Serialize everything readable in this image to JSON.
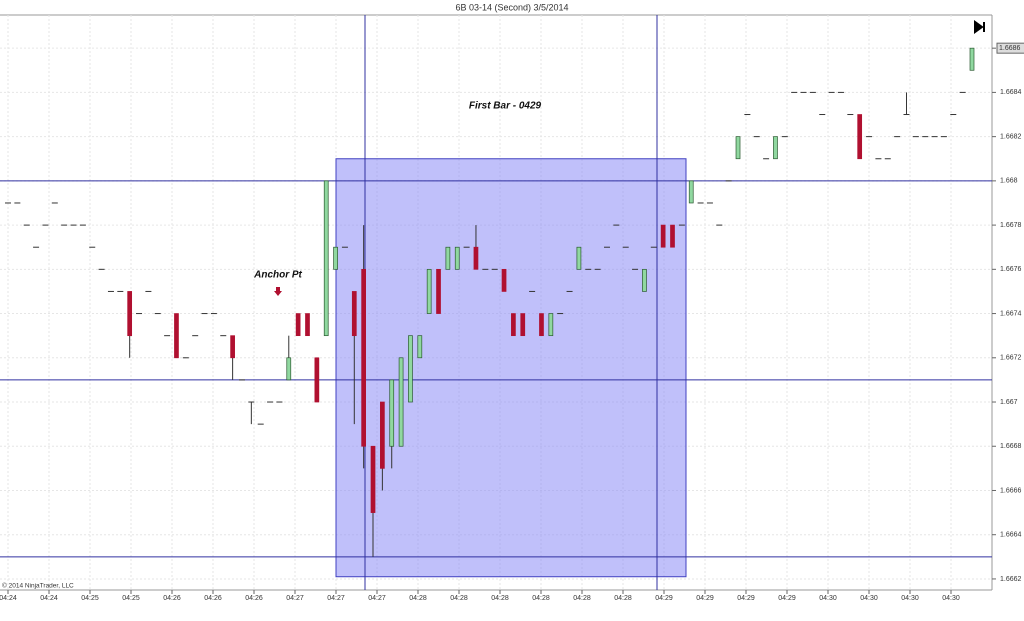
{
  "chart_data": {
    "type": "candlestick",
    "title": "6B 03-14 (Second)  3/5/2014",
    "copyright": "© 2014 NinjaTrader, LLC",
    "annotations": {
      "first_bar": "First Bar - 0429",
      "anchor": "Anchor Pt"
    },
    "up_color": "#90d8a0",
    "down_color": "#b01030",
    "ylim": [
      1.66615,
      1.66875
    ],
    "yticks": [
      1.6662,
      1.6664,
      1.6666,
      1.6668,
      1.667,
      1.6672,
      1.6674,
      1.6676,
      1.6678,
      1.668,
      1.6682,
      1.6684,
      1.6686
    ],
    "last_price": 1.6686,
    "levels": [
      1.668,
      1.6671,
      1.6663
    ],
    "box": {
      "top": 1.6681,
      "bottom": 1.66621,
      "color": "#8c8cf5"
    },
    "grid": true,
    "xtick_labels": [
      "04:24",
      "04:24",
      "04:25",
      "04:25",
      "04:26",
      "04:26",
      "04:26",
      "04:27",
      "04:27",
      "04:27",
      "04:28",
      "04:28",
      "04:28",
      "04:28",
      "04:28",
      "04:28",
      "04:29",
      "04:29",
      "04:29",
      "04:29",
      "04:30",
      "04:30",
      "04:30",
      "04:30"
    ],
    "ohlc": [
      [
        1.6679,
        1.6679,
        1.6679,
        1.6679
      ],
      [
        1.6679,
        1.6679,
        1.6679,
        1.6679
      ],
      [
        1.6678,
        1.6678,
        1.6678,
        1.6678
      ],
      [
        1.6677,
        1.6677,
        1.6677,
        1.6677
      ],
      [
        1.6678,
        1.6678,
        1.6678,
        1.6678
      ],
      [
        1.6679,
        1.6679,
        1.6679,
        1.6679
      ],
      [
        1.6678,
        1.6678,
        1.6678,
        1.6678
      ],
      [
        1.6678,
        1.6678,
        1.6678,
        1.6678
      ],
      [
        1.6678,
        1.6678,
        1.6678,
        1.6678
      ],
      [
        1.6677,
        1.6677,
        1.6677,
        1.6677
      ],
      [
        1.6676,
        1.6676,
        1.6676,
        1.6676
      ],
      [
        1.6675,
        1.6675,
        1.6675,
        1.6675
      ],
      [
        1.6675,
        1.6675,
        1.6675,
        1.6675
      ],
      [
        1.6675,
        1.6675,
        1.6672,
        1.6673
      ],
      [
        1.6674,
        1.6674,
        1.6674,
        1.6674
      ],
      [
        1.6675,
        1.6675,
        1.6675,
        1.6675
      ],
      [
        1.6674,
        1.6674,
        1.6674,
        1.6674
      ],
      [
        1.6673,
        1.6673,
        1.6673,
        1.6673
      ],
      [
        1.6674,
        1.6674,
        1.6672,
        1.6672
      ],
      [
        1.6672,
        1.6672,
        1.6672,
        1.6672
      ],
      [
        1.6673,
        1.6673,
        1.6673,
        1.6673
      ],
      [
        1.6674,
        1.6674,
        1.6674,
        1.6674
      ],
      [
        1.6674,
        1.6674,
        1.6674,
        1.6674
      ],
      [
        1.6673,
        1.6673,
        1.6673,
        1.6673
      ],
      [
        1.6673,
        1.6673,
        1.6671,
        1.6672
      ],
      [
        1.6671,
        1.6671,
        1.6671,
        1.6671
      ],
      [
        1.667,
        1.667,
        1.6669,
        1.667
      ],
      [
        1.6669,
        1.6669,
        1.6669,
        1.6669
      ],
      [
        1.667,
        1.667,
        1.667,
        1.667
      ],
      [
        1.667,
        1.667,
        1.667,
        1.667
      ],
      [
        1.6671,
        1.6673,
        1.6671,
        1.6672
      ],
      [
        1.6674,
        1.6674,
        1.6673,
        1.6673
      ],
      [
        1.6674,
        1.6674,
        1.6673,
        1.6673
      ],
      [
        1.6672,
        1.6672,
        1.667,
        1.667
      ],
      [
        1.6673,
        1.668,
        1.6673,
        1.668
      ],
      [
        1.6676,
        1.6677,
        1.6676,
        1.6677
      ],
      [
        1.6677,
        1.6677,
        1.6677,
        1.6677
      ],
      [
        1.6675,
        1.6675,
        1.6669,
        1.6673
      ],
      [
        1.6676,
        1.6678,
        1.6667,
        1.6668
      ],
      [
        1.6668,
        1.6668,
        1.6663,
        1.6665
      ],
      [
        1.667,
        1.667,
        1.6666,
        1.6667
      ],
      [
        1.6668,
        1.6671,
        1.6667,
        1.6671
      ],
      [
        1.6668,
        1.6672,
        1.6668,
        1.6672
      ],
      [
        1.667,
        1.6673,
        1.667,
        1.6673
      ],
      [
        1.6672,
        1.6673,
        1.6672,
        1.6673
      ],
      [
        1.6674,
        1.6676,
        1.6674,
        1.6676
      ],
      [
        1.6676,
        1.6676,
        1.6674,
        1.6674
      ],
      [
        1.6676,
        1.6677,
        1.6676,
        1.6677
      ],
      [
        1.6676,
        1.6677,
        1.6676,
        1.6677
      ],
      [
        1.6677,
        1.6677,
        1.6677,
        1.6677
      ],
      [
        1.6677,
        1.6678,
        1.6676,
        1.6676
      ],
      [
        1.6676,
        1.6676,
        1.6676,
        1.6676
      ],
      [
        1.6676,
        1.6676,
        1.6676,
        1.6676
      ],
      [
        1.6676,
        1.6676,
        1.6675,
        1.6675
      ],
      [
        1.6674,
        1.6674,
        1.6673,
        1.6673
      ],
      [
        1.6674,
        1.6674,
        1.6673,
        1.6673
      ],
      [
        1.6675,
        1.6675,
        1.6675,
        1.6675
      ],
      [
        1.6674,
        1.6674,
        1.6673,
        1.6673
      ],
      [
        1.6673,
        1.6674,
        1.6673,
        1.6674
      ],
      [
        1.6674,
        1.6674,
        1.6674,
        1.6674
      ],
      [
        1.6675,
        1.6675,
        1.6675,
        1.6675
      ],
      [
        1.6676,
        1.6677,
        1.6676,
        1.6677
      ],
      [
        1.6676,
        1.6676,
        1.6676,
        1.6676
      ],
      [
        1.6676,
        1.6676,
        1.6676,
        1.6676
      ],
      [
        1.6677,
        1.6677,
        1.6677,
        1.6677
      ],
      [
        1.6678,
        1.6678,
        1.6678,
        1.6678
      ],
      [
        1.6677,
        1.6677,
        1.6677,
        1.6677
      ],
      [
        1.6676,
        1.6676,
        1.6676,
        1.6676
      ],
      [
        1.6675,
        1.6676,
        1.6675,
        1.6676
      ],
      [
        1.6677,
        1.6677,
        1.6677,
        1.6677
      ],
      [
        1.6678,
        1.6678,
        1.6677,
        1.6677
      ],
      [
        1.6678,
        1.6678,
        1.6677,
        1.6677
      ],
      [
        1.6678,
        1.6678,
        1.6678,
        1.6678
      ],
      [
        1.6679,
        1.668,
        1.6679,
        1.668
      ],
      [
        1.6679,
        1.6679,
        1.6679,
        1.6679
      ],
      [
        1.6679,
        1.6679,
        1.6679,
        1.6679
      ],
      [
        1.6678,
        1.6678,
        1.6678,
        1.6678
      ],
      [
        1.668,
        1.668,
        1.668,
        1.668
      ],
      [
        1.6681,
        1.6682,
        1.6681,
        1.6682
      ],
      [
        1.6683,
        1.6683,
        1.6683,
        1.6683
      ],
      [
        1.6682,
        1.6682,
        1.6682,
        1.6682
      ],
      [
        1.6681,
        1.6681,
        1.6681,
        1.6681
      ],
      [
        1.6681,
        1.6682,
        1.6681,
        1.6682
      ],
      [
        1.6682,
        1.6682,
        1.6682,
        1.6682
      ],
      [
        1.6684,
        1.6684,
        1.6684,
        1.6684
      ],
      [
        1.6684,
        1.6684,
        1.6684,
        1.6684
      ],
      [
        1.6684,
        1.6684,
        1.6684,
        1.6684
      ],
      [
        1.6683,
        1.6683,
        1.6683,
        1.6683
      ],
      [
        1.6684,
        1.6684,
        1.6684,
        1.6684
      ],
      [
        1.6684,
        1.6684,
        1.6684,
        1.6684
      ],
      [
        1.6683,
        1.6683,
        1.6683,
        1.6683
      ],
      [
        1.6683,
        1.6683,
        1.6681,
        1.6681
      ],
      [
        1.6682,
        1.6682,
        1.6682,
        1.6682
      ],
      [
        1.6681,
        1.6681,
        1.6681,
        1.6681
      ],
      [
        1.6681,
        1.6681,
        1.6681,
        1.6681
      ],
      [
        1.6682,
        1.6682,
        1.6682,
        1.6682
      ],
      [
        1.6683,
        1.6684,
        1.6683,
        1.6683
      ],
      [
        1.6682,
        1.6682,
        1.6682,
        1.6682
      ],
      [
        1.6682,
        1.6682,
        1.6682,
        1.6682
      ],
      [
        1.6682,
        1.6682,
        1.6682,
        1.6682
      ],
      [
        1.6682,
        1.6682,
        1.6682,
        1.6682
      ],
      [
        1.6683,
        1.6683,
        1.6683,
        1.6683
      ],
      [
        1.6684,
        1.6684,
        1.6684,
        1.6684
      ],
      [
        1.6685,
        1.6686,
        1.6685,
        1.6686
      ]
    ]
  }
}
